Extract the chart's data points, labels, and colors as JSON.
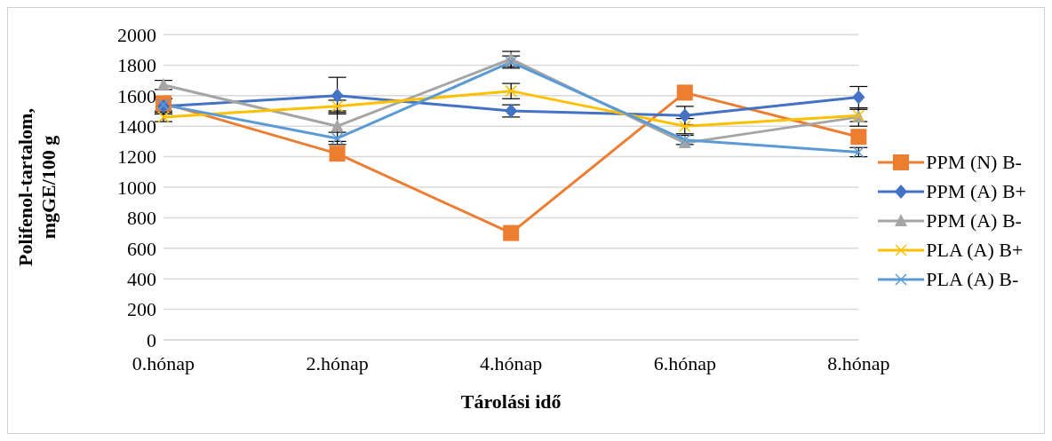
{
  "chart_data": {
    "type": "line",
    "xlabel": "Tárolási idő",
    "ylabel": "Polifenol-tartalom, mgGE/100 g",
    "categories": [
      "0.hónap",
      "2.hónap",
      "4.hónap",
      "6.hónap",
      "8.hónap"
    ],
    "ylim": [
      0,
      2000
    ],
    "yticks": [
      0,
      200,
      400,
      600,
      800,
      1000,
      1200,
      1400,
      1600,
      1800,
      2000
    ],
    "grid": "y",
    "legend": "right",
    "series": [
      {
        "name": "PPM (N) B-",
        "color": "#ed7d31",
        "marker": "square",
        "values": [
          1550,
          1220,
          700,
          1620,
          1330
        ],
        "errors": [
          null,
          null,
          null,
          null,
          null
        ]
      },
      {
        "name": "PPM (A) B+",
        "color": "#4472c4",
        "marker": "diamond",
        "values": [
          1530,
          1600,
          1500,
          1470,
          1590
        ],
        "errors": [
          50,
          120,
          40,
          60,
          70
        ]
      },
      {
        "name": "PPM (A) B-",
        "color": "#a5a5a5",
        "marker": "triangle",
        "values": [
          1670,
          1400,
          1840,
          1290,
          1460
        ],
        "errors": [
          30,
          100,
          50,
          null,
          60
        ]
      },
      {
        "name": "PLA (A) B+",
        "color": "#ffc000",
        "marker": "cross",
        "values": [
          1460,
          1530,
          1630,
          1400,
          1470
        ],
        "errors": [
          30,
          40,
          50,
          50,
          40
        ]
      },
      {
        "name": "PLA (A) B-",
        "color": "#5b9bd5",
        "marker": "cross",
        "values": [
          1540,
          1320,
          1820,
          1310,
          1230
        ],
        "errors": [
          40,
          40,
          40,
          30,
          30
        ]
      }
    ]
  }
}
